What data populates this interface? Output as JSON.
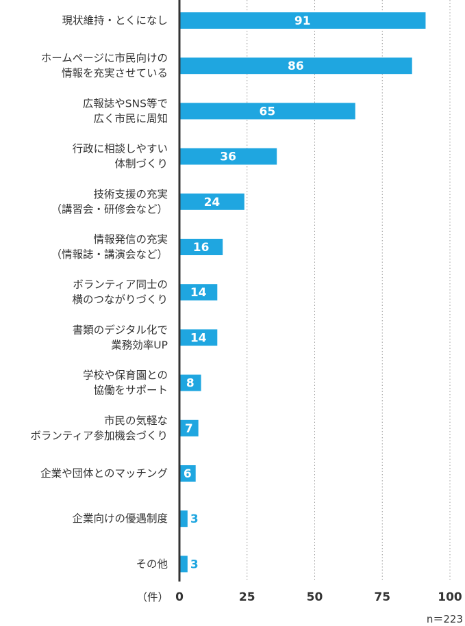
{
  "chart_data": {
    "type": "bar",
    "orientation": "horizontal",
    "categories": [
      [
        "現状維持・とくになし"
      ],
      [
        "ホームページに市民向けの",
        "情報を充実させている"
      ],
      [
        "広報誌やSNS等で",
        "広く市民に周知"
      ],
      [
        "行政に相談しやすい",
        "体制づくり"
      ],
      [
        "技術支援の充実",
        "（講習会・研修会など）"
      ],
      [
        "情報発信の充実",
        "（情報誌・講演会など）"
      ],
      [
        "ボランティア同士の",
        "横のつながりづくり"
      ],
      [
        "書類のデジタル化で",
        "業務効率UP"
      ],
      [
        "学校や保育園との",
        "協働をサポート"
      ],
      [
        "市民の気軽な",
        "ボランティア参加機会づくり"
      ],
      [
        "企業や団体とのマッチング"
      ],
      [
        "企業向けの優遇制度"
      ],
      [
        "その他"
      ]
    ],
    "values": [
      91,
      86,
      65,
      36,
      24,
      16,
      14,
      14,
      8,
      7,
      6,
      3,
      3
    ],
    "xlim": [
      0,
      100
    ],
    "xticks": [
      "0",
      "25",
      "50",
      "75",
      "100"
    ],
    "xlabel": "（件）",
    "note": "n＝223",
    "grid": "vertical dotted",
    "bar_color": "#1fa6e0",
    "label_inside_color": "#ffffff",
    "label_outside_color": "#1fa6e0",
    "axis_color": "#333333"
  }
}
